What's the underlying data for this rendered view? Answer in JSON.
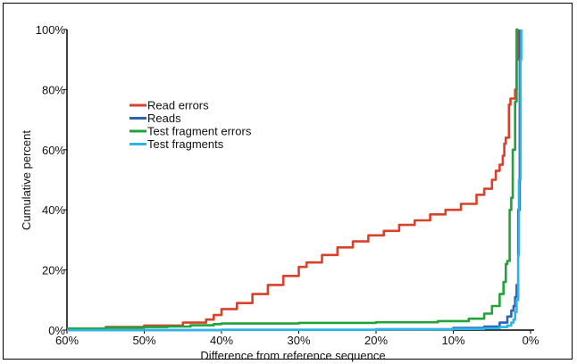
{
  "chart_data": {
    "type": "line",
    "xlabel": "Difference from reference sequence",
    "ylabel": "Cumulative percent",
    "xlim": [
      60,
      0
    ],
    "ylim": [
      0,
      100
    ],
    "x_reversed": true,
    "x_ticks": [
      "60%",
      "50%",
      "40%",
      "30%",
      "20%",
      "10%",
      "0%"
    ],
    "x_tick_values": [
      60,
      50,
      40,
      30,
      20,
      10,
      0
    ],
    "y_ticks": [
      "0%",
      "20%",
      "40%",
      "60%",
      "80%",
      "100%"
    ],
    "y_tick_values": [
      0,
      20,
      40,
      60,
      80,
      100
    ],
    "grid": false,
    "legend_position": "upper-left",
    "series": [
      {
        "name": "Read errors",
        "color": "#d9412b",
        "x": [
          60,
          55,
          50,
          45,
          42,
          41,
          40,
          38,
          36,
          34,
          32,
          30,
          29,
          27,
          25,
          23,
          21,
          19,
          17,
          15,
          13,
          11,
          9,
          7,
          6,
          5,
          4.5,
          4,
          3.6,
          3.4,
          3.2,
          3.0,
          2.8,
          2.6,
          2.4,
          2.2,
          2.0,
          1.8,
          1.6
        ],
        "y": [
          0.5,
          1,
          1.5,
          2.5,
          3.5,
          5,
          7,
          9,
          12,
          15,
          18,
          21,
          22.5,
          25,
          27.5,
          29.5,
          31.5,
          33,
          35,
          36.5,
          38.5,
          40,
          42,
          45,
          47,
          50,
          53,
          55,
          58,
          62,
          64,
          64,
          75,
          77,
          77,
          77,
          80,
          90,
          100
        ]
      },
      {
        "name": "Reads",
        "color": "#2a63b8",
        "x": [
          60,
          40,
          20,
          10,
          6,
          4,
          3,
          2.5,
          2.2,
          2.0,
          1.8,
          1.6,
          1.4
        ],
        "y": [
          0,
          0.1,
          0.3,
          0.7,
          1.2,
          2.5,
          4.5,
          6.5,
          8,
          11,
          15,
          40,
          100
        ]
      },
      {
        "name": "Test fragment errors",
        "color": "#21a33a",
        "x": [
          60,
          55,
          50,
          47,
          44,
          41,
          40,
          30,
          20,
          12,
          8,
          6,
          5,
          4,
          3.5,
          3.2,
          3.0,
          2.7,
          2.5,
          2.3,
          2.0,
          1.8,
          1.6
        ],
        "y": [
          0.5,
          0.8,
          1,
          1.2,
          1.6,
          2.0,
          2.2,
          2.4,
          2.6,
          3.0,
          3.8,
          5.5,
          8,
          12,
          16,
          22,
          23,
          40,
          44,
          60,
          76,
          100,
          100
        ]
      },
      {
        "name": "Test fragments",
        "color": "#2bb6e8",
        "x": [
          60,
          40,
          20,
          10,
          6,
          4,
          3,
          2.5,
          2.2,
          2.0,
          1.8,
          1.6,
          1.5,
          1.3,
          1.2
        ],
        "y": [
          0,
          0.1,
          0.2,
          0.4,
          0.6,
          1.0,
          1.5,
          2.5,
          3.5,
          6,
          10,
          25,
          50,
          90,
          100
        ]
      }
    ]
  }
}
